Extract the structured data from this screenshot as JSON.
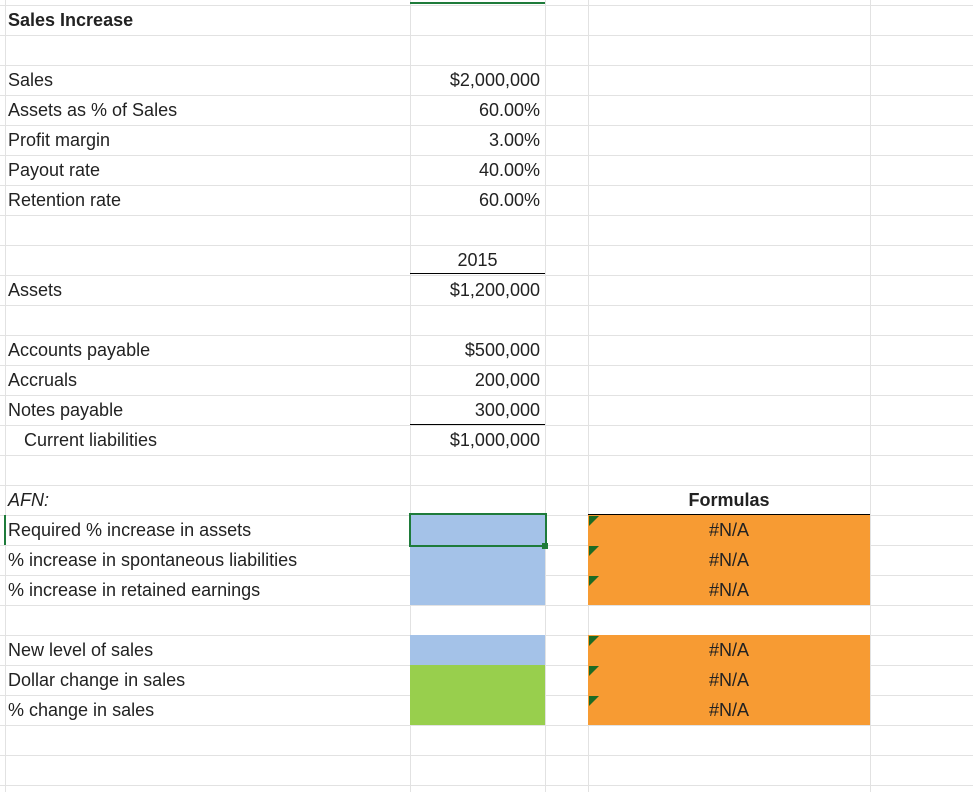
{
  "title": "Sales Increase",
  "inputs": [
    {
      "label": "Sales",
      "value": "$2,000,000"
    },
    {
      "label": "Assets as % of Sales",
      "value": "60.00%"
    },
    {
      "label": "Profit margin",
      "value": "3.00%"
    },
    {
      "label": "Payout rate",
      "value": "40.00%"
    },
    {
      "label": "Retention rate",
      "value": "60.00%"
    }
  ],
  "year": "2015",
  "assets": {
    "label": "Assets",
    "value": "$1,200,000"
  },
  "liabilities": [
    {
      "label": "Accounts payable",
      "value": "$500,000"
    },
    {
      "label": "Accruals",
      "value": "200,000"
    },
    {
      "label": "Notes payable",
      "value": "300,000"
    }
  ],
  "current_liabilities": {
    "label": "Current liabilities",
    "value": "$1,000,000"
  },
  "afn": {
    "heading": "AFN:",
    "formulas_heading": "Formulas",
    "rows": [
      {
        "label": "Required % increase in assets",
        "result": "#N/A"
      },
      {
        "label": "% increase in spontaneous liabilities",
        "result": "#N/A"
      },
      {
        "label": "% increase in retained earnings",
        "result": "#N/A"
      }
    ]
  },
  "sales_change": {
    "rows": [
      {
        "label": "New level of sales",
        "result": "#N/A"
      },
      {
        "label": "Dollar change in sales",
        "result": "#N/A"
      },
      {
        "label": "% change in sales",
        "result": "#N/A"
      }
    ]
  }
}
